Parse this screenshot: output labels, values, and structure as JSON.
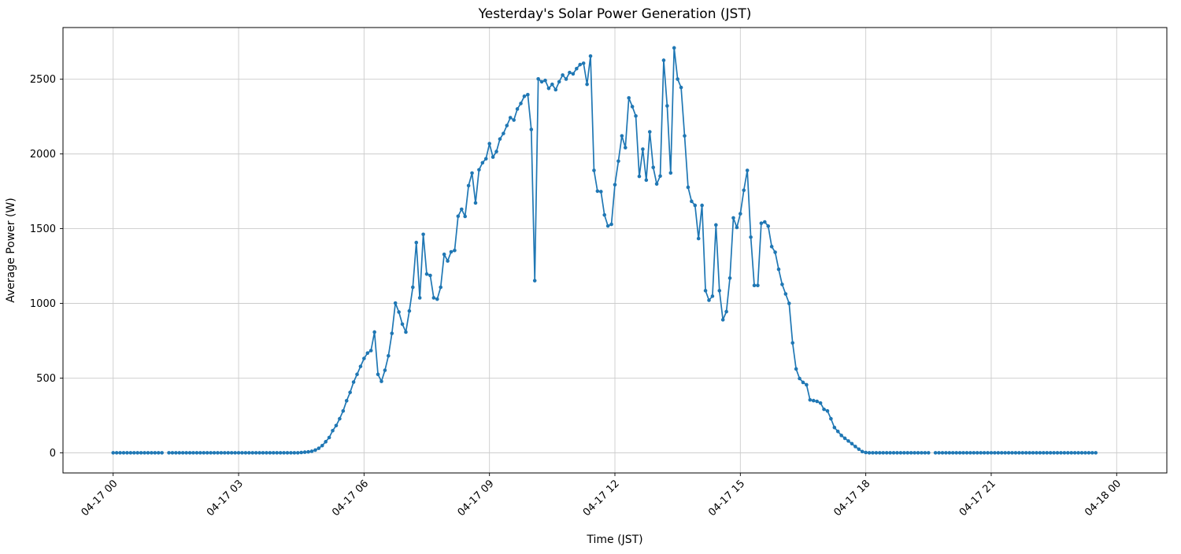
{
  "figure": {
    "background_color": "#ffffff",
    "spine_color": "#000000",
    "grid_color": "#cccccc"
  },
  "chart_data": {
    "type": "line",
    "title": "Yesterday's Solar Power Generation (JST)",
    "xlabel": "Time (JST)",
    "ylabel": "Average Power (W)",
    "line_color": "#1f77b4",
    "marker": "circle",
    "grid": true,
    "legend": "none",
    "x_start_label": "04-17 00:00",
    "x_end_label": "04-18 00:00",
    "sample_interval_minutes": 5,
    "x_tick_minutes": [
      0,
      180,
      360,
      540,
      720,
      900,
      1080,
      1260,
      1440
    ],
    "x_tick_labels": [
      "04-17 00",
      "04-17 03",
      "04-17 06",
      "04-17 09",
      "04-17 12",
      "04-17 15",
      "04-17 18",
      "04-17 21",
      "04-18 00"
    ],
    "y_ticks": [
      0,
      500,
      1000,
      1500,
      2000,
      2500
    ],
    "ylim": [
      -135,
      2846
    ],
    "xlim_minutes": [
      -72,
      1512
    ],
    "values": [
      0,
      0,
      0,
      0,
      0,
      0,
      0,
      0,
      0,
      0,
      0,
      0,
      0,
      0,
      0,
      null,
      0,
      0,
      0,
      0,
      0,
      0,
      0,
      0,
      0,
      0,
      0,
      0,
      0,
      0,
      0,
      0,
      0,
      0,
      0,
      0,
      0,
      0,
      0,
      0,
      0,
      0,
      0,
      0,
      0,
      0,
      0,
      0,
      0,
      0,
      0,
      0,
      0,
      0,
      2,
      4,
      6,
      10,
      18,
      30,
      48,
      74,
      102,
      148,
      182,
      228,
      280,
      348,
      404,
      473,
      525,
      578,
      631,
      667,
      684,
      808,
      525,
      478,
      552,
      649,
      799,
      1002,
      942,
      861,
      808,
      949,
      1108,
      1407,
      1037,
      1462,
      1196,
      1187,
      1037,
      1028,
      1108,
      1328,
      1284,
      1345,
      1354,
      1583,
      1630,
      1582,
      1788,
      1872,
      1672,
      1894,
      1941,
      1968,
      2069,
      1979,
      2016,
      2100,
      2137,
      2190,
      2243,
      2227,
      2301,
      2338,
      2386,
      2397,
      2164,
      1152,
      2502,
      2483,
      2492,
      2439,
      2466,
      2430,
      2483,
      2528,
      2501,
      2545,
      2536,
      2571,
      2598,
      2607,
      2466,
      2655,
      1890,
      1751,
      1748,
      1592,
      1518,
      1529,
      1794,
      1952,
      2121,
      2042,
      2375,
      2317,
      2254,
      1850,
      2032,
      1825,
      2148,
      1910,
      1799,
      1852,
      2627,
      2322,
      1873,
      2710,
      2501,
      2445,
      2121,
      1777,
      1683,
      1656,
      1434,
      1656,
      1085,
      1021,
      1048,
      1525,
      1085,
      890,
      945,
      1169,
      1572,
      1508,
      1600,
      1757,
      1890,
      1443,
      1120,
      1120,
      1536,
      1545,
      1517,
      1380,
      1342,
      1228,
      1127,
      1063,
      1000,
      735,
      561,
      497,
      471,
      455,
      354,
      349,
      344,
      333,
      291,
      280,
      228,
      169,
      143,
      116,
      97,
      79,
      61,
      42,
      24,
      8,
      2,
      0,
      0,
      0,
      0,
      0,
      0,
      0,
      0,
      0,
      0,
      0,
      0,
      0,
      0,
      0,
      0,
      0,
      0,
      null,
      0,
      0,
      0,
      0,
      0,
      0,
      0,
      0,
      0,
      0,
      0,
      0,
      0,
      0,
      0,
      0,
      0,
      0,
      0,
      0,
      0,
      0,
      0,
      0,
      0,
      0,
      0,
      0,
      0,
      0,
      0,
      0,
      0,
      0,
      0,
      0,
      0,
      0,
      0,
      0,
      0,
      0,
      0,
      0,
      0,
      0,
      0
    ]
  }
}
